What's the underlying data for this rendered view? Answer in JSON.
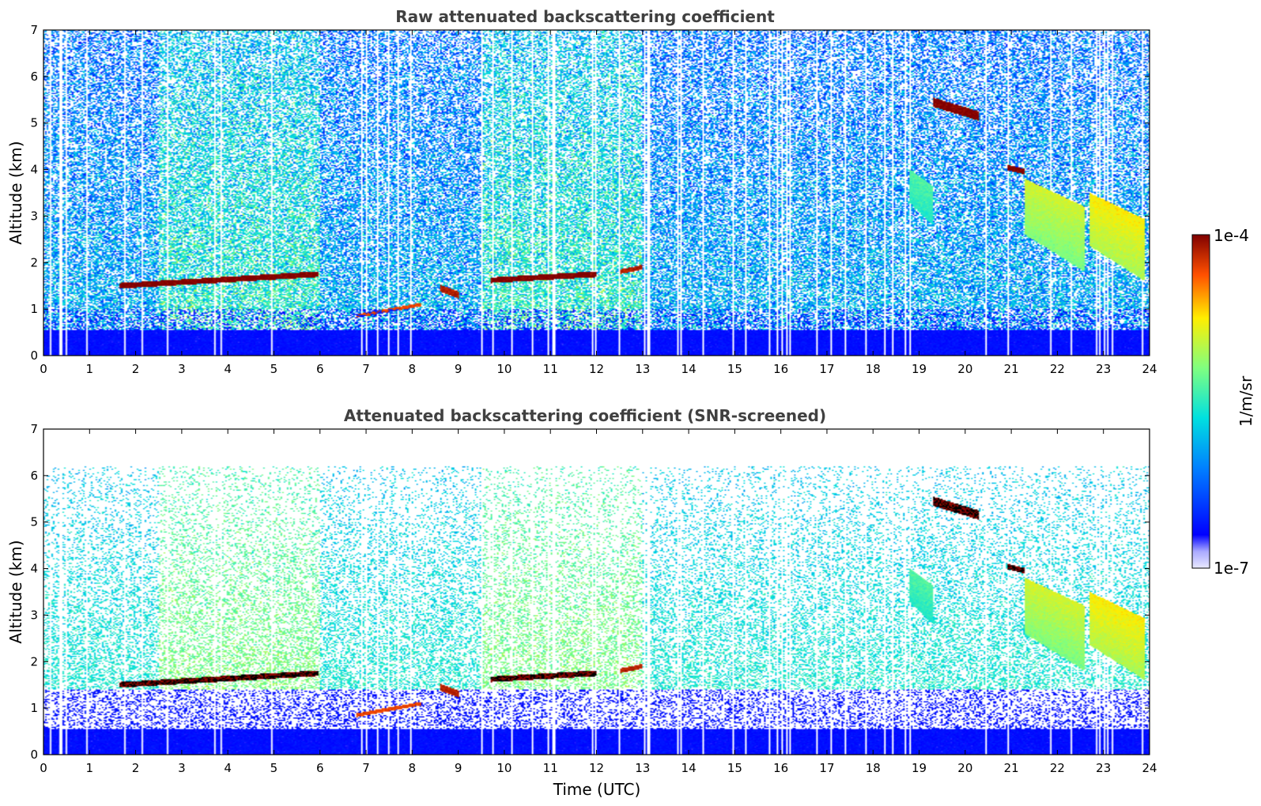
{
  "chart_data": [
    {
      "type": "heatmap",
      "title": "Raw attenuated backscattering coefficient",
      "xlabel": "",
      "ylabel": "Altitude (km)",
      "xlim": [
        0,
        24
      ],
      "ylim": [
        0,
        7
      ],
      "xticks": [
        "0",
        "1",
        "2",
        "3",
        "4",
        "5",
        "6",
        "7",
        "8",
        "9",
        "10",
        "11",
        "12",
        "13",
        "14",
        "15",
        "16",
        "17",
        "18",
        "19",
        "20",
        "21",
        "22",
        "23",
        "24"
      ],
      "yticks": [
        "0",
        "1",
        "2",
        "3",
        "4",
        "5",
        "6",
        "7"
      ],
      "features": [
        {
          "kind": "cloud_layer",
          "t0": 1.65,
          "t1": 5.95,
          "alt0": 1.5,
          "alt1": 1.75,
          "thickness": 0.12,
          "level": 1.0
        },
        {
          "kind": "cloud_layer",
          "t0": 9.7,
          "t1": 12.0,
          "alt0": 1.62,
          "alt1": 1.75,
          "thickness": 0.12,
          "level": 1.0
        },
        {
          "kind": "cloud_layer",
          "t0": 12.5,
          "t1": 13.0,
          "alt0": 1.8,
          "alt1": 1.9,
          "thickness": 0.1,
          "level": 0.95
        },
        {
          "kind": "cloud_layer",
          "t0": 6.8,
          "t1": 8.2,
          "alt0": 0.85,
          "alt1": 1.1,
          "thickness": 0.08,
          "level": 0.9
        },
        {
          "kind": "cloud_layer",
          "t0": 8.6,
          "t1": 9.0,
          "alt0": 1.45,
          "alt1": 1.3,
          "thickness": 0.15,
          "level": 0.95
        },
        {
          "kind": "cloud_layer",
          "t0": 19.3,
          "t1": 20.3,
          "alt0": 5.45,
          "alt1": 5.15,
          "thickness": 0.2,
          "level": 1.0
        },
        {
          "kind": "cloud_layer",
          "t0": 20.9,
          "t1": 21.3,
          "alt0": 4.05,
          "alt1": 3.95,
          "thickness": 0.12,
          "level": 1.0
        },
        {
          "kind": "fallstreak",
          "t0": 21.3,
          "t1": 22.6,
          "alt0": 3.8,
          "alt1": 1.8,
          "level": 0.7
        },
        {
          "kind": "fallstreak",
          "t0": 22.7,
          "t1": 23.9,
          "alt0": 3.5,
          "alt1": 1.6,
          "level": 0.75
        },
        {
          "kind": "fallstreak",
          "t0": 18.8,
          "t1": 19.3,
          "alt0": 4.0,
          "alt1": 2.8,
          "level": 0.55
        }
      ],
      "colorbar": {
        "min": "1e-7",
        "max": "1e-4",
        "label": "1/m/sr",
        "colormap": "jet"
      }
    },
    {
      "type": "heatmap",
      "title": "Attenuated backscattering coefficient (SNR-screened)",
      "xlabel": "Time (UTC)",
      "ylabel": "Altitude (km)",
      "xlim": [
        0,
        24
      ],
      "ylim": [
        0,
        7
      ],
      "xticks": [
        "0",
        "1",
        "2",
        "3",
        "4",
        "5",
        "6",
        "7",
        "8",
        "9",
        "10",
        "11",
        "12",
        "13",
        "14",
        "15",
        "16",
        "17",
        "18",
        "19",
        "20",
        "21",
        "22",
        "23",
        "24"
      ],
      "yticks": [
        "0",
        "1",
        "2",
        "3",
        "4",
        "5",
        "6",
        "7"
      ],
      "screened": true,
      "colorbar": {
        "min": "1e-7",
        "max": "1e-4",
        "label": "1/m/sr",
        "colormap": "jet"
      }
    }
  ],
  "colorbar": {
    "max_label": "1e-4",
    "min_label": "1e-7",
    "unit_label": "1/m/sr"
  }
}
